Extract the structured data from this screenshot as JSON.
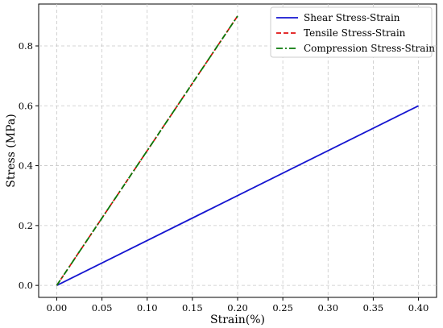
{
  "chart_data": {
    "type": "line",
    "title": "",
    "xlabel": "Strain(%)",
    "ylabel": "Stress (MPa)",
    "xlim": [
      -0.02,
      0.42
    ],
    "ylim": [
      -0.04,
      0.94
    ],
    "xticks": [
      0.0,
      0.05,
      0.1,
      0.15,
      0.2,
      0.25,
      0.3,
      0.35,
      0.4
    ],
    "xtick_labels": [
      "0.00",
      "0.05",
      "0.10",
      "0.15",
      "0.20",
      "0.25",
      "0.30",
      "0.35",
      "0.40"
    ],
    "yticks": [
      0.0,
      0.2,
      0.4,
      0.6,
      0.8
    ],
    "ytick_labels": [
      "0.0",
      "0.2",
      "0.4",
      "0.6",
      "0.8"
    ],
    "grid": true,
    "legend_position": "top-right",
    "series": [
      {
        "name": "Shear Stress-Strain",
        "color": "#1515d0",
        "style": "solid",
        "x": [
          0.0,
          0.4
        ],
        "y": [
          0.0,
          0.6
        ]
      },
      {
        "name": "Tensile Stress-Strain",
        "color": "#e01010",
        "style": "dashed",
        "x": [
          0.0,
          0.2
        ],
        "y": [
          0.0,
          0.9
        ]
      },
      {
        "name": "Compression Stress-Strain",
        "color": "#0a7a0a",
        "style": "dashdot",
        "x": [
          0.0,
          0.2
        ],
        "y": [
          0.0,
          0.9
        ]
      }
    ]
  }
}
